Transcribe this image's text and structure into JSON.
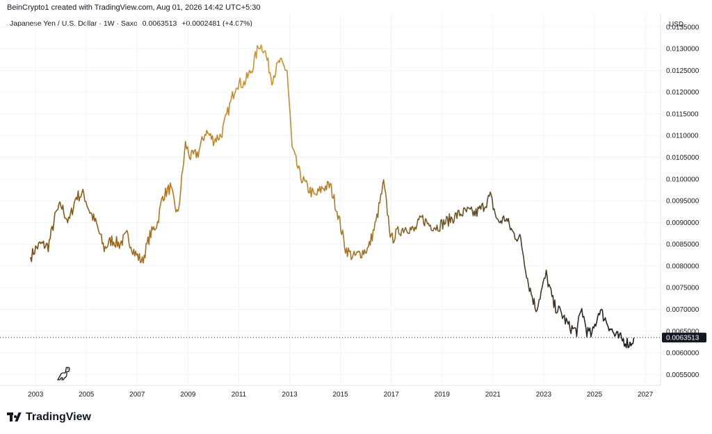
{
  "header": {
    "credit": "BeinCrypto1 created with TradingView.com, Aug 01, 2026 14:42 UTC+5:30",
    "symbol": "Japanese Yen / U.S. Dollar · 1W · Saxo",
    "last": "0.0063513",
    "change": "+0.0002481 (+4.07%)"
  },
  "logo": {
    "text": "TradingView"
  },
  "colors": {
    "line_start": "#7a4a12",
    "line_mid": "#d4962a",
    "line_end": "#131722",
    "grid": "#f0f3fa",
    "price_tag": "#131722"
  },
  "chart_data": {
    "type": "line",
    "xlabel": "",
    "ylabel": "",
    "y_unit_label": "USD",
    "xlim": [
      2001.6,
      2027.6
    ],
    "ylim": [
      0.00525,
      0.0138
    ],
    "x_ticks": [
      "2003",
      "2005",
      "2007",
      "2009",
      "2011",
      "2013",
      "2015",
      "2017",
      "2019",
      "2021",
      "2023",
      "2025",
      "2027"
    ],
    "y_ticks": [
      "0.0055000",
      "0.0060000",
      "0.0065000",
      "0.0070000",
      "0.0075000",
      "0.0080000",
      "0.0085000",
      "0.0090000",
      "0.0095000",
      "0.0100000",
      "0.0105000",
      "0.0110000",
      "0.0115000",
      "0.0120000",
      "0.0125000",
      "0.0130000",
      "0.0135000"
    ],
    "y_tick_values": [
      0.0055,
      0.006,
      0.0065,
      0.007,
      0.0075,
      0.008,
      0.0085,
      0.009,
      0.0095,
      0.01,
      0.0105,
      0.011,
      0.0115,
      0.012,
      0.0125,
      0.013,
      0.0135
    ],
    "last_value": 0.0063513,
    "last_value_label": "0.0063513",
    "grid": true,
    "series": [
      {
        "x": [
          2002.8,
          2003.0,
          2003.2,
          2003.5,
          2003.8,
          2004.0,
          2004.3,
          2004.6,
          2004.9,
          2005.1,
          2005.4,
          2005.7,
          2006.0,
          2006.3,
          2006.6,
          2006.9,
          2007.2,
          2007.5,
          2007.8,
          2008.0,
          2008.3,
          2008.6,
          2008.9,
          2009.1,
          2009.4,
          2009.7,
          2010.0,
          2010.3,
          2010.6,
          2010.9,
          2011.2,
          2011.5,
          2011.8,
          2012.0,
          2012.3,
          2012.6,
          2012.9,
          2013.1,
          2013.4,
          2013.7,
          2014.0,
          2014.3,
          2014.6,
          2014.9,
          2015.2,
          2015.5,
          2015.8,
          2016.1,
          2016.4,
          2016.7,
          2017.0,
          2017.3,
          2017.6,
          2017.9,
          2018.2,
          2018.5,
          2018.8,
          2019.1,
          2019.4,
          2019.7,
          2020.0,
          2020.3,
          2020.6,
          2020.9,
          2021.2,
          2021.5,
          2021.8,
          2022.1,
          2022.4,
          2022.7,
          2022.9,
          2023.1,
          2023.4,
          2023.7,
          2024.0,
          2024.3,
          2024.5,
          2024.7,
          2024.9,
          2025.2,
          2025.5,
          2025.8,
          2026.1,
          2026.4,
          2026.55
        ],
        "y": [
          0.0082,
          0.0084,
          0.0085,
          0.00845,
          0.0092,
          0.0094,
          0.009,
          0.0096,
          0.00965,
          0.0093,
          0.00895,
          0.0084,
          0.0086,
          0.0085,
          0.0087,
          0.0083,
          0.0081,
          0.0087,
          0.009,
          0.0096,
          0.0098,
          0.00915,
          0.0108,
          0.0105,
          0.0106,
          0.0111,
          0.0109,
          0.011,
          0.0116,
          0.0122,
          0.0122,
          0.0125,
          0.0131,
          0.013,
          0.0123,
          0.0127,
          0.0125,
          0.0107,
          0.0101,
          0.0098,
          0.0096,
          0.0098,
          0.00985,
          0.0092,
          0.0084,
          0.0082,
          0.0083,
          0.0084,
          0.009,
          0.0099,
          0.0086,
          0.0088,
          0.0089,
          0.0088,
          0.0091,
          0.00895,
          0.0089,
          0.009,
          0.0091,
          0.0092,
          0.00925,
          0.0092,
          0.00935,
          0.0096,
          0.009,
          0.0091,
          0.00875,
          0.0086,
          0.0076,
          0.007,
          0.0074,
          0.0078,
          0.0071,
          0.0069,
          0.0066,
          0.0065,
          0.007,
          0.0065,
          0.0064,
          0.007,
          0.0067,
          0.0064,
          0.0063,
          0.0062,
          0.00635
        ]
      }
    ]
  }
}
